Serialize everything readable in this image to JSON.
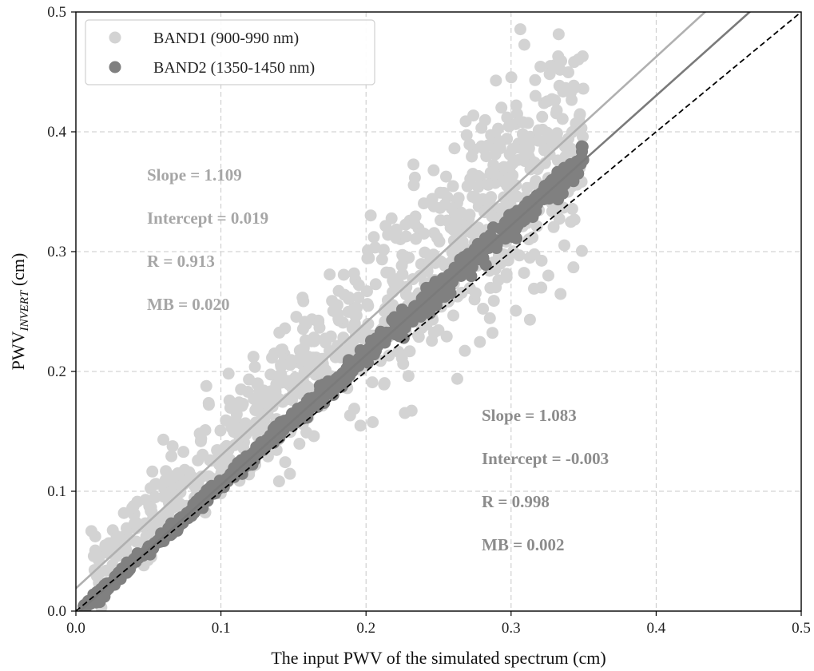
{
  "chart_data": {
    "type": "scatter",
    "xlabel": "The input PWV of the simulated spectrum (cm)",
    "ylabel": {
      "main": "PWV",
      "subscript": "INVERT",
      "unit": " (cm)"
    },
    "xlim": [
      0,
      0.5
    ],
    "ylim": [
      0,
      0.5
    ],
    "xticks": [
      "0.0",
      "0.1",
      "0.2",
      "0.3",
      "0.4",
      "0.5"
    ],
    "yticks": [
      "0.0",
      "0.1",
      "0.2",
      "0.3",
      "0.4",
      "0.5"
    ],
    "grid": true,
    "legend_position": "top-left",
    "series": [
      {
        "name": "BAND1 (900-990 nm)",
        "color": "#d3d3d3",
        "x_range": [
          0.01,
          0.35
        ],
        "fit": {
          "slope": 1.109,
          "intercept": 0.019
        },
        "fit_color": "#b0b0b0",
        "stats": [
          "Slope = 1.109",
          "Intercept = 0.019",
          "R = 0.913",
          "MB = 0.020"
        ]
      },
      {
        "name": "BAND2 (1350-1450 nm)",
        "color": "#808080",
        "x_range": [
          0.005,
          0.35
        ],
        "fit": {
          "slope": 1.083,
          "intercept": -0.003
        },
        "fit_color": "#7a7a7a",
        "stats": [
          "Slope = 1.083",
          "Intercept = -0.003",
          "R = 0.998",
          "MB = 0.002"
        ]
      }
    ],
    "reference_line": {
      "label": "1:1",
      "style": "dashed",
      "color": "#000000"
    }
  }
}
